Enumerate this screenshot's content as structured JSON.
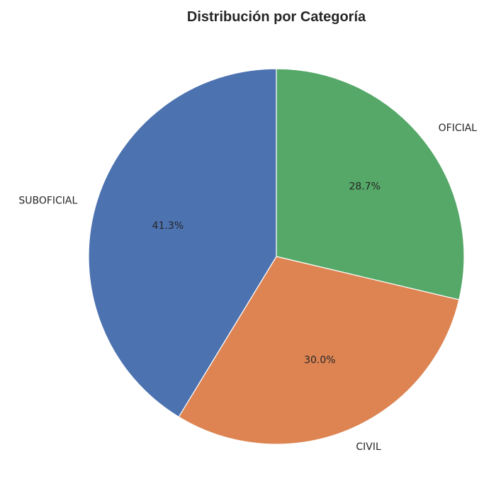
{
  "chart_data": {
    "type": "pie",
    "title": "Distribución por Categoría",
    "categories": [
      "OFICIAL",
      "CIVIL",
      "SUBOFICIAL"
    ],
    "values": [
      28.7,
      30.0,
      41.3
    ],
    "pct_labels": [
      "28.7%",
      "30.0%",
      "41.3%"
    ],
    "colors": [
      "#55a868",
      "#dd8452",
      "#4c72b0"
    ],
    "start_angle_deg": 90,
    "direction": "clockwise"
  }
}
